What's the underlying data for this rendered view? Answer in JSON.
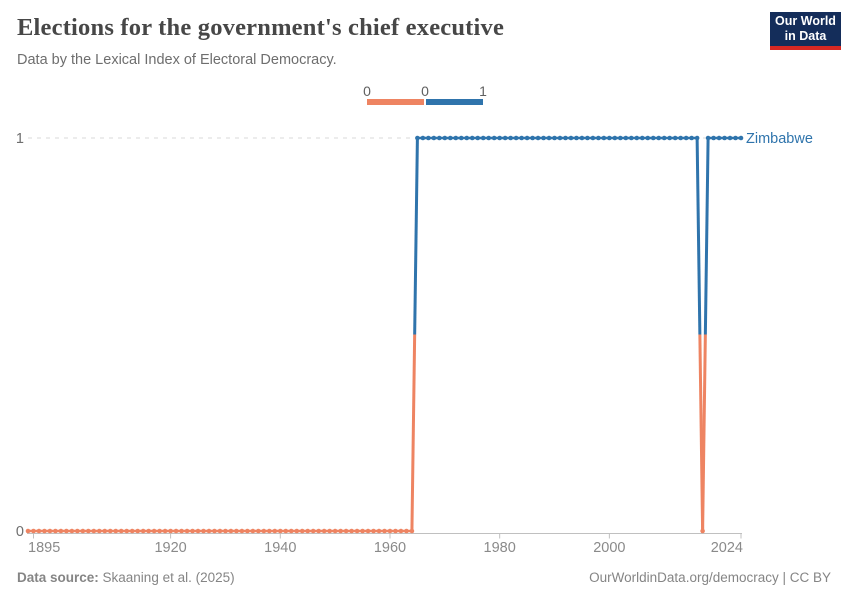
{
  "header": {
    "title": "Elections for the government's chief executive",
    "subtitle": "Data by the Lexical Index of Electoral Democracy.",
    "logo": {
      "line1": "Our World",
      "line2": "in Data"
    }
  },
  "legend": {
    "tick_labels": [
      "0",
      "0",
      "1"
    ],
    "segments": [
      {
        "value": "0",
        "color": "#EE8462"
      },
      {
        "value": "1",
        "color": "#2F74AC"
      }
    ]
  },
  "chart_data": {
    "type": "line",
    "title": "Elections for the government's chief executive",
    "subtitle": "Data by the Lexical Index of Electoral Democracy.",
    "entity": "Zimbabwe",
    "x": {
      "min": 1894,
      "max": 2024,
      "ticks": [
        1895,
        1920,
        1940,
        1960,
        1980,
        2000,
        2024
      ]
    },
    "y": {
      "min": 0,
      "max": 1,
      "ticks": [
        0,
        1
      ],
      "gridline_values": [
        1
      ],
      "grid": "dashed-at-1"
    },
    "series": [
      {
        "name": "Zimbabwe",
        "segments": [
          {
            "from": 1894,
            "to": 1964,
            "value": 0
          },
          {
            "from": 1965,
            "to": 2016,
            "value": 1
          },
          {
            "from": 2017,
            "to": 2017,
            "value": 0
          },
          {
            "from": 2018,
            "to": 2024,
            "value": 1
          }
        ]
      }
    ],
    "value_colors": {
      "0": "#EE8462",
      "1": "#2F74AC"
    },
    "entity_label_color": "#2F74AC",
    "axis_color": "#c0c0c0",
    "tick_label_color": "#8a8a8a",
    "y_label_color": "#6e6e6e",
    "gridline_color": "#d9d9d9",
    "legend_position": "top-center"
  },
  "footer": {
    "source_label": "Data source:",
    "source_text": " Skaaning et al. (2025)",
    "credit": "OurWorldinData.org/democracy | CC BY"
  }
}
